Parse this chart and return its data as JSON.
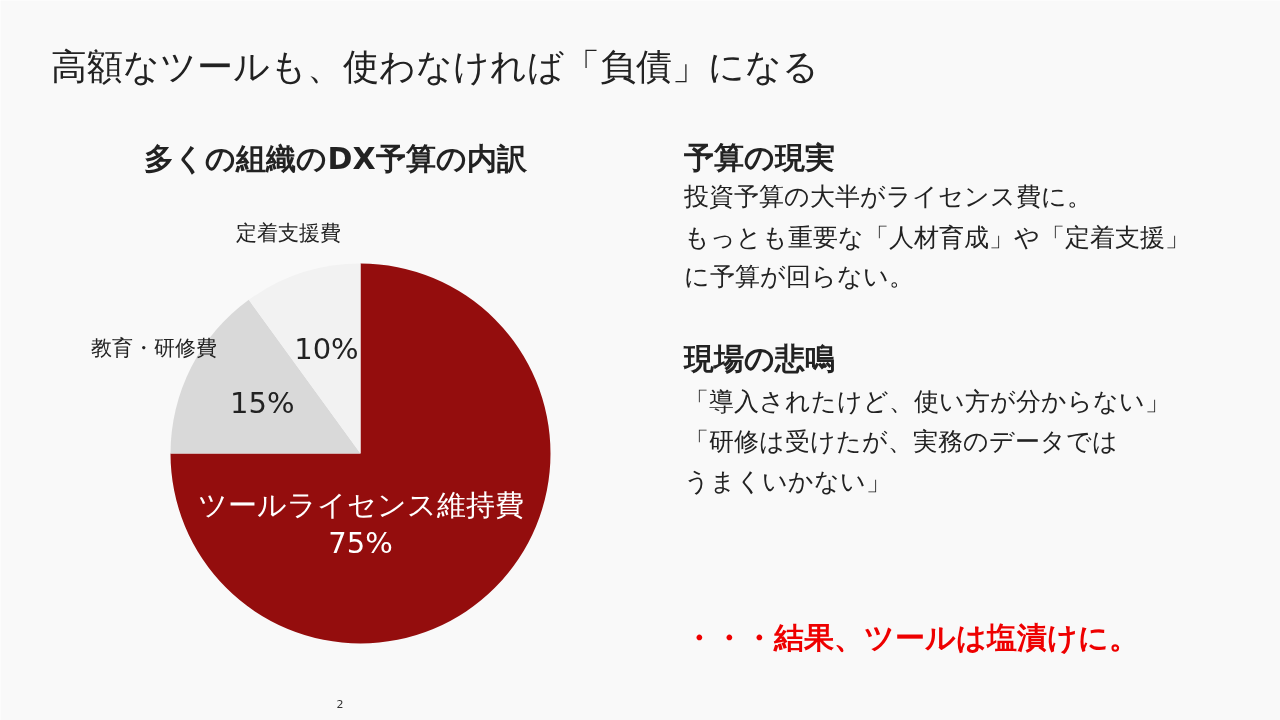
{
  "chart_data": {
    "type": "pie",
    "title": "高額なツールも、使わなければ「負債」になる",
    "subtitle": "多くの組織のDX予算の内訳",
    "categories": [
      "ツールライセンス維持費",
      "教育・研修費",
      "定着支援費"
    ],
    "values": [
      75,
      15,
      10
    ],
    "colors": [
      "#940d0d",
      "#d9d9d9",
      "#f2f2f2"
    ],
    "value_labels": [
      "75%",
      "15%",
      "10%"
    ],
    "annotations": [
      "予算の現実",
      "投資予算の大半がライセンス費に。",
      "もっとも重要な「人材育成」や「定着支援」",
      "に予算が回らない。",
      "現場の悲鳴",
      "「導入されたけど、使い方が分からない」",
      "「研修は受けたが、実務のデータでは",
      "うまくいかない」",
      "・・・結果、ツールは塩漬けに。",
      "2"
    ]
  }
}
